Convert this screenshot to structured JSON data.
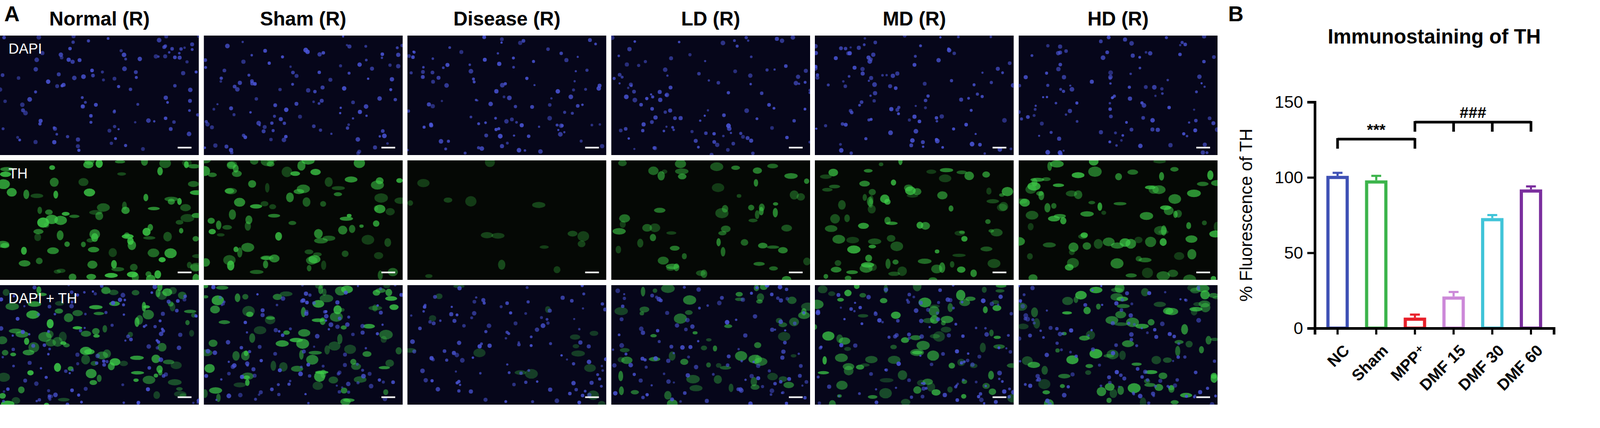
{
  "chart_data": {
    "type": "bar",
    "panel_label": "B",
    "title": "Immunostaining of TH",
    "y_label": "% Fluorescence of TH",
    "categories": [
      "NC",
      "Sham",
      "MPP⁺",
      "DMF 15",
      "DMF 30",
      "DMF 60"
    ],
    "values": [
      101,
      98,
      7,
      21,
      73,
      92
    ],
    "errors": [
      2,
      3,
      2,
      3,
      2,
      2
    ],
    "colors": [
      "#3f51b5",
      "#3cb44b",
      "#e8202a",
      "#cc88d8",
      "#40c4d8",
      "#7b2f9e"
    ],
    "ylim": [
      0,
      150
    ],
    "yticks": [
      0,
      50,
      100,
      150
    ],
    "annotations": [
      {
        "text": "***",
        "from": "NC",
        "to": [
          "MPP⁺"
        ]
      },
      {
        "text": "###",
        "from": "MPP⁺",
        "to": [
          "DMF 15",
          "DMF 30",
          "DMF 60"
        ]
      }
    ]
  },
  "panel_a": {
    "panel_label": "A",
    "columns": [
      "Normal (R)",
      "Sham (R)",
      "Disease (R)",
      "LD (R)",
      "MD (R)",
      "HD (R)"
    ],
    "rows": [
      "DAPI",
      "TH",
      "DAPI + TH"
    ]
  }
}
